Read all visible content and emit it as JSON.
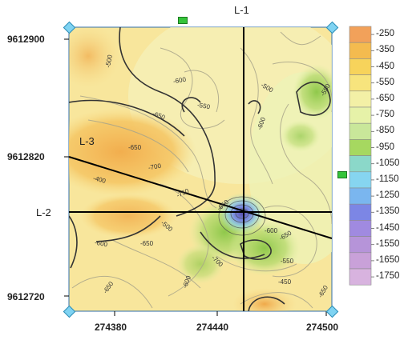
{
  "map": {
    "y_ticks": [
      "9612900",
      "9612820",
      "9612720"
    ],
    "x_ticks": [
      "274380",
      "274440",
      "274500"
    ],
    "lines": [
      {
        "name": "L-1",
        "label": "L-1"
      },
      {
        "name": "L-2",
        "label": "L-2"
      },
      {
        "name": "L-3",
        "label": "L-3"
      }
    ],
    "contour_labels": [
      "-500",
      "-600",
      "-550",
      "-650",
      "-500",
      "-600",
      "-550",
      "-650",
      "-400",
      "-700",
      "-750",
      "-500",
      "-600",
      "-650",
      "-650",
      "-700",
      "-600",
      "-650",
      "-550",
      "-450",
      "-600",
      "-650",
      "-650"
    ],
    "colors": {
      "background": "#fbe9a6",
      "high": "#f2ae4e",
      "mid": "#f6e6a0",
      "low_green": "#a6d15a",
      "low_blue": "#5a5fb5",
      "line": "#000000",
      "handle": "#7fd3f2"
    }
  },
  "colorbar": {
    "labels": [
      "-250",
      "-350",
      "-450",
      "-550",
      "-650",
      "-750",
      "-850",
      "-950",
      "-1050",
      "-1150",
      "-1250",
      "-1350",
      "-1450",
      "-1550",
      "-1650",
      "-1750"
    ],
    "colors": [
      "#f2a15a",
      "#f4bb4f",
      "#f7d35b",
      "#f7e47d",
      "#f3f0a6",
      "#e6f2a8",
      "#c9e79a",
      "#a6d860",
      "#8bd8c9",
      "#86d5f0",
      "#7ab6ef",
      "#7c86e5",
      "#a08ae0",
      "#b694d9",
      "#c9a1d9",
      "#d8b3df"
    ]
  }
}
